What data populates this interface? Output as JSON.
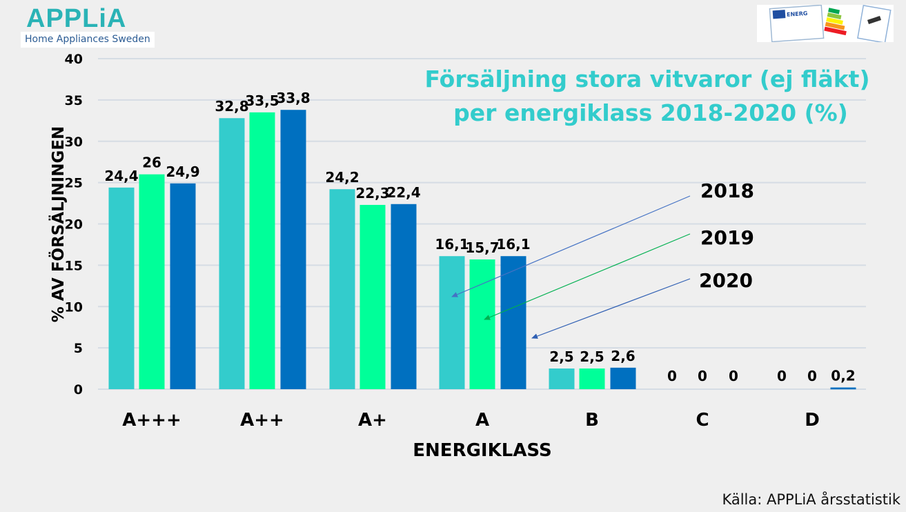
{
  "logo": {
    "name": "APPLiA",
    "subtitle": "Home Appliances Sweden"
  },
  "energy_label_image": {
    "text": "ENERG",
    "icon": "eu-energy-label-icon"
  },
  "source": "Källa: APPLiA årsstatistik",
  "colors": {
    "series_2018": "#33cccc",
    "series_2019": "#00ff99",
    "series_2020": "#0070c0",
    "title": "#33cccc",
    "grid": "#d5dce4",
    "background": "#efefef"
  },
  "chart_data": {
    "type": "bar",
    "title": "Försäljning stora vitvaror (ej fläkt) per energiklass 2018-2020 (%)",
    "title_lines": [
      "Försäljning stora vitvaror (ej fläkt)",
      "per energiklass 2018-2020 (%)"
    ],
    "xlabel": "ENERGIKLASS",
    "ylabel": "% AV FÖRSÄLJNINGEN",
    "ylim": [
      0,
      40
    ],
    "yticks": [
      0,
      5,
      10,
      15,
      20,
      25,
      30,
      35,
      40
    ],
    "grid": true,
    "categories": [
      "A+++",
      "A++",
      "A+",
      "A",
      "B",
      "C",
      "D"
    ],
    "series": [
      {
        "name": "2018",
        "values": [
          24.4,
          32.8,
          24.2,
          16.1,
          2.5,
          0,
          0
        ],
        "labels": [
          "24,4",
          "32,8",
          "24,2",
          "16,1",
          "2,5",
          "0",
          "0"
        ]
      },
      {
        "name": "2019",
        "values": [
          26,
          33.5,
          22.3,
          15.7,
          2.5,
          0,
          0
        ],
        "labels": [
          "26",
          "33,5",
          "22,3",
          "15,7",
          "2,5",
          "0",
          "0"
        ]
      },
      {
        "name": "2020",
        "values": [
          24.9,
          33.8,
          22.4,
          16.1,
          2.6,
          0,
          0.2
        ],
        "labels": [
          "24,9",
          "33,8",
          "22,4",
          "16,1",
          "2,6",
          "0",
          "0,2"
        ]
      }
    ],
    "legend": "annotation arrows pointing to bars of category A, placed right of the bars"
  }
}
